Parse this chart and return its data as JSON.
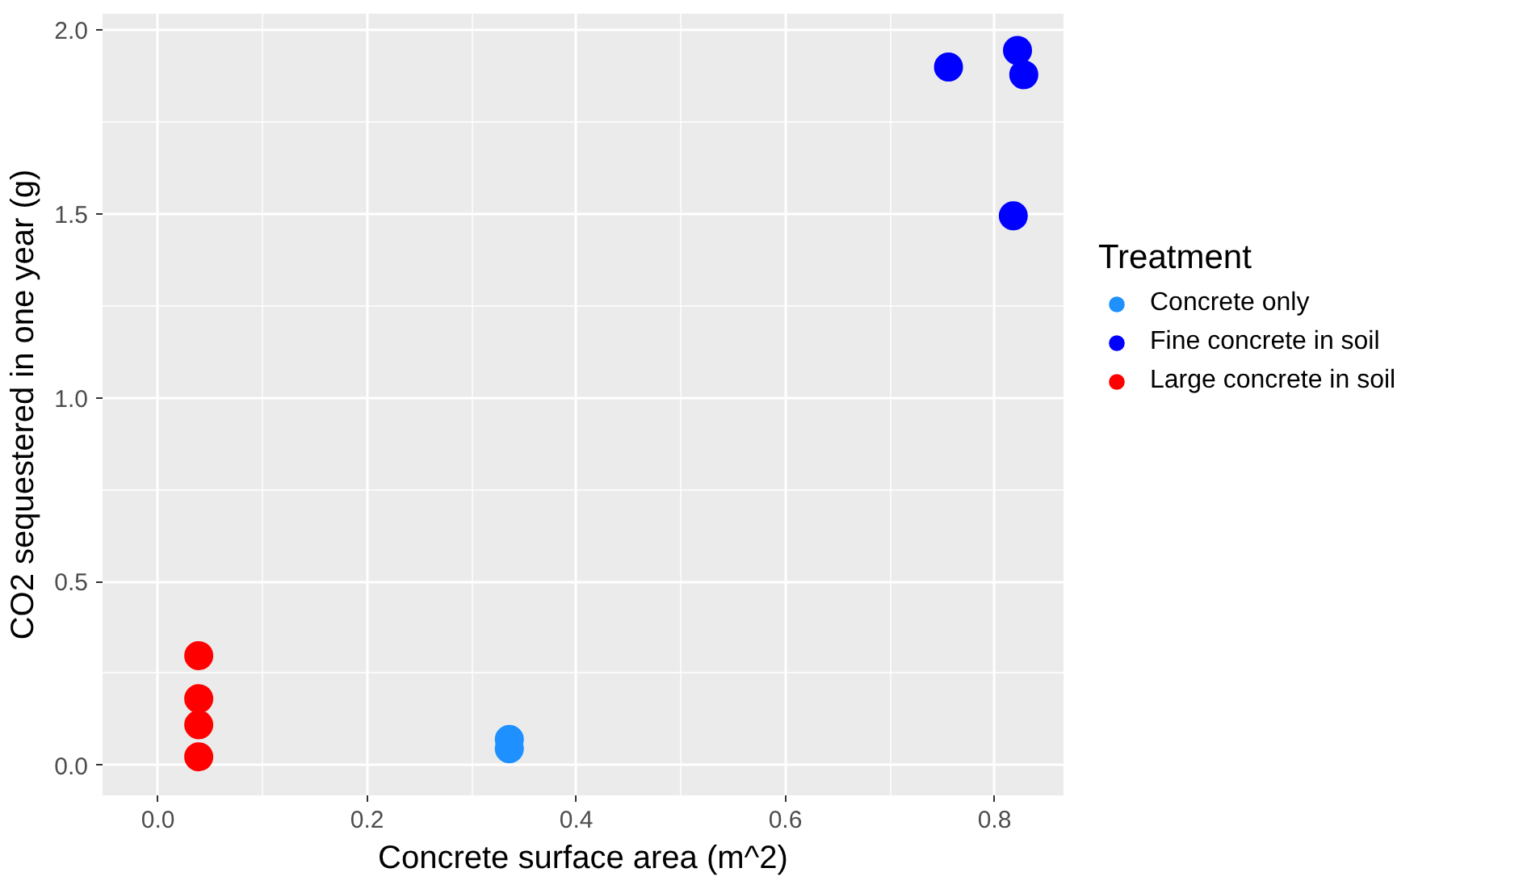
{
  "chart_data": {
    "type": "scatter",
    "xlabel": "Concrete surface area (m^2)",
    "ylabel": "CO2 sequestered in one year (g)",
    "legend_title": "Treatment",
    "legend": "right",
    "grid": true,
    "marker": "circle",
    "xlim": [
      -0.053,
      0.866
    ],
    "ylim": [
      -0.082,
      2.045
    ],
    "xticks": [
      {
        "value": 0,
        "label": "0.0"
      },
      0.2,
      0.4,
      0.6,
      0.8
    ],
    "yticks": [
      {
        "value": 0,
        "label": "0.0"
      },
      0.5,
      {
        "value": 1,
        "label": "1.0"
      },
      1.5,
      {
        "value": 2,
        "label": "2.0"
      }
    ],
    "series": [
      {
        "name": "Concrete only",
        "color": "#1e90ff",
        "x": [
          0.336,
          0.336
        ],
        "values": [
          0.07,
          0.045
        ]
      },
      {
        "name": "Fine concrete in soil",
        "color": "#0000ff",
        "x": [
          0.756,
          0.822,
          0.828,
          0.818
        ],
        "values": [
          1.9,
          1.945,
          1.879,
          1.495
        ]
      },
      {
        "name": "Large concrete in soil",
        "color": "#ff0000",
        "x": [
          0.039,
          0.039,
          0.039,
          0.039
        ],
        "values": [
          0.298,
          0.181,
          0.11,
          0.023
        ]
      }
    ]
  }
}
